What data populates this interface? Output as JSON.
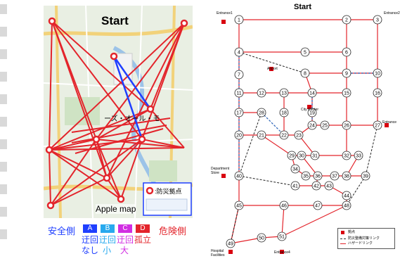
{
  "left_map": {
    "title": "Start",
    "footer": "Apple map",
    "place_label": "ーズ・オール・モ",
    "legend_box_text": ":防災拠点"
  },
  "risk_legend": {
    "safe_side": "安全側",
    "danger_side": "危険側",
    "levels": [
      {
        "code": "A",
        "color": "#1f3fff",
        "line1": "迂回",
        "line2": "なし"
      },
      {
        "code": "B",
        "color": "#27a9ee",
        "line1": "迂回",
        "line2": "小"
      },
      {
        "code": "C",
        "color": "#d12ee2",
        "line1": "迂回",
        "line2": "大"
      },
      {
        "code": "D",
        "color": "#e3242b",
        "line1": "孤立",
        "line2": ""
      }
    ]
  },
  "network": {
    "title": "Start",
    "labels": {
      "entrance_tl": "Entrance1",
      "entrance_tr": "Entrance2",
      "entrance_r": "Entrance",
      "airport": "Airport",
      "city_center": "City Center",
      "department_store": "Department Store",
      "hospital": "Hospital Facilities",
      "entrance_bottom": "Entrance4"
    },
    "legend": {
      "hub": "拠点",
      "dashed": "防災整備対策リンク",
      "solid": "ハザードリンク"
    },
    "nodes": [
      "1",
      "2",
      "3",
      "4",
      "5",
      "6",
      "7",
      "8",
      "9",
      "10",
      "11",
      "12",
      "13",
      "14",
      "15",
      "16",
      "17",
      "18",
      "19",
      "20",
      "21",
      "22",
      "23",
      "24",
      "25",
      "26",
      "27",
      "28",
      "29",
      "30",
      "31",
      "32",
      "33",
      "34",
      "35",
      "36",
      "37",
      "38",
      "39",
      "40",
      "41",
      "42",
      "43",
      "44",
      "45",
      "46",
      "47",
      "48",
      "49",
      "50",
      "51"
    ]
  }
}
